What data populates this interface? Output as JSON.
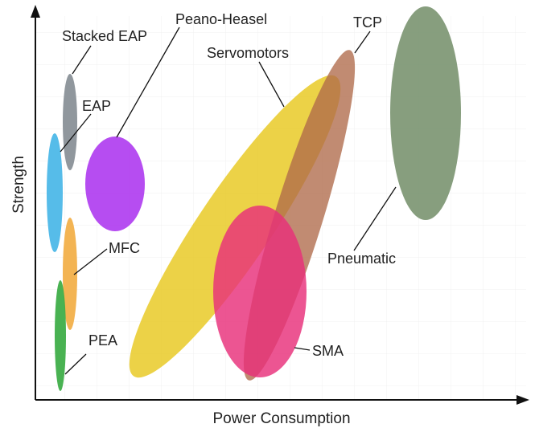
{
  "axes": {
    "x_label": "Power Consumption",
    "y_label": "Strength"
  },
  "actuators": [
    {
      "key": "stacked-eap",
      "name": "Stacked EAP",
      "color": "#8a9198"
    },
    {
      "key": "eap",
      "name": "EAP",
      "color": "#4db8e8"
    },
    {
      "key": "peano-heasel",
      "name": "Peano-Heasel",
      "color": "#b03ef0"
    },
    {
      "key": "mfc",
      "name": "MFC",
      "color": "#f2b04a"
    },
    {
      "key": "pea",
      "name": "PEA",
      "color": "#3fae49"
    },
    {
      "key": "servomotors",
      "name": "Servomotors",
      "color": "#e8c81e"
    },
    {
      "key": "tcp",
      "name": "TCP",
      "color": "#b06a4a"
    },
    {
      "key": "sma",
      "name": "SMA",
      "color": "#e8307a"
    },
    {
      "key": "pneumatic",
      "name": "Pneumatic",
      "color": "#7a9470"
    }
  ]
}
